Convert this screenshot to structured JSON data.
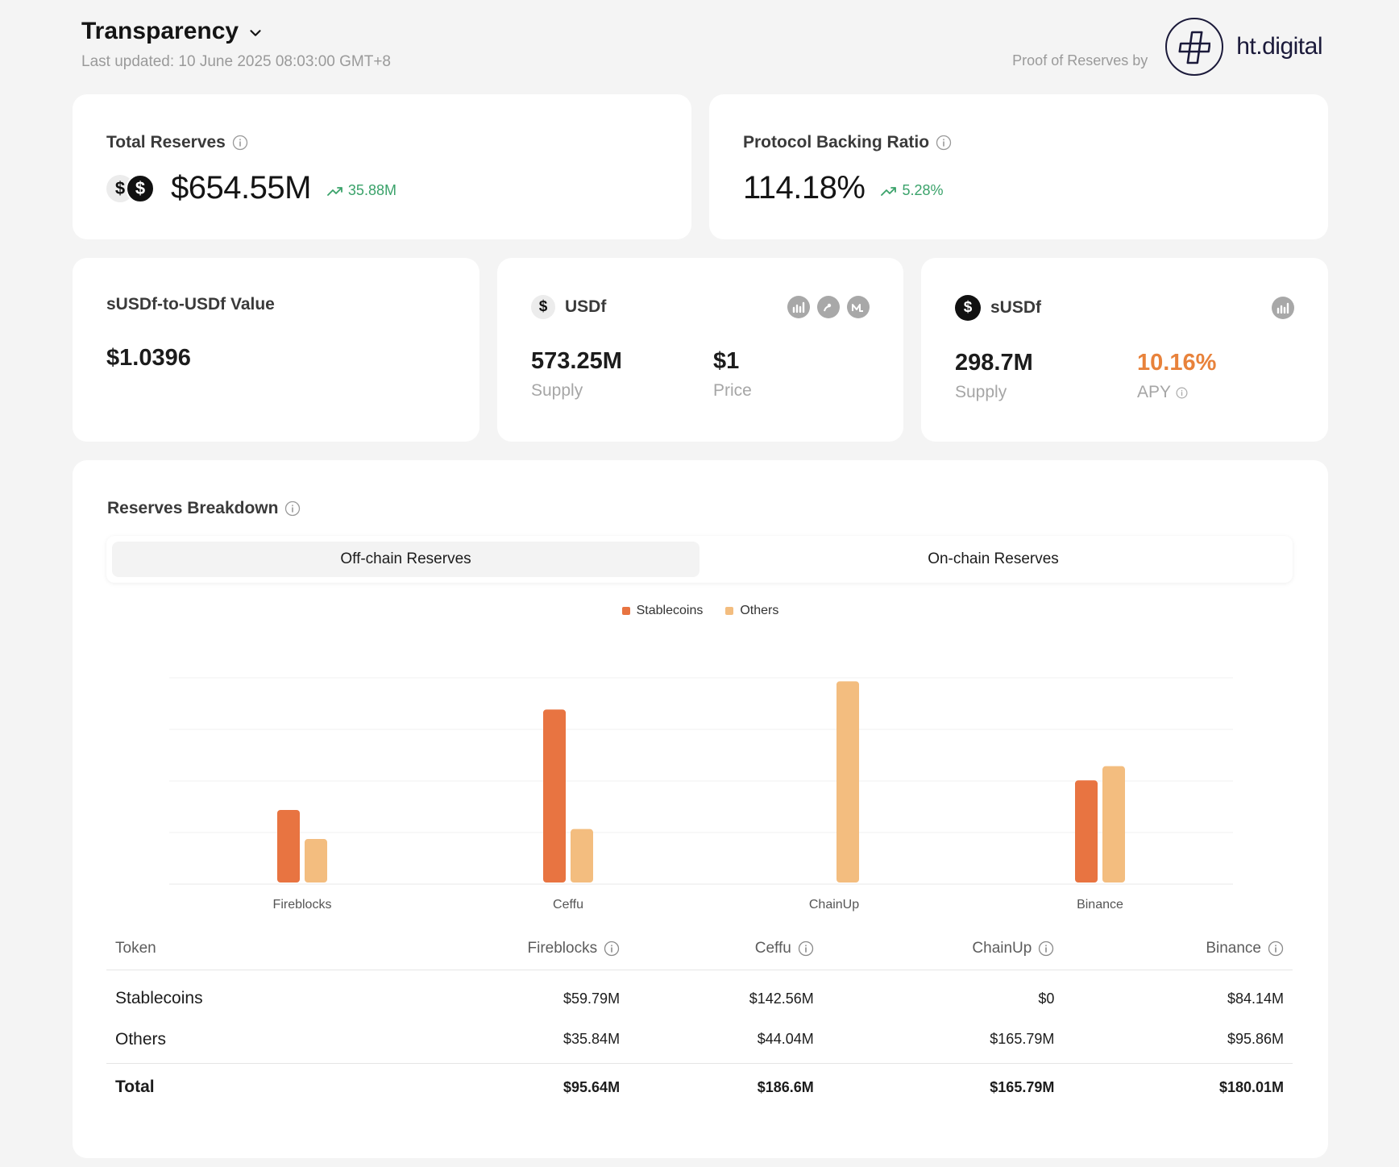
{
  "header": {
    "title": "Transparency",
    "last_updated": "Last updated: 10 June 2025 08:03:00 GMT+8",
    "proof_label": "Proof of Reserves by",
    "logo_text": "ht.digital"
  },
  "total_reserves": {
    "label": "Total Reserves",
    "value": "$654.55M",
    "change": "35.88M"
  },
  "backing_ratio": {
    "label": "Protocol Backing Ratio",
    "value": "114.18%",
    "change": "5.28%"
  },
  "susdf_value": {
    "label": "sUSDf-to-USDf Value",
    "value": "$1.0396"
  },
  "usdf": {
    "name": "USDf",
    "supply": "573.25M",
    "supply_label": "Supply",
    "price": "$1",
    "price_label": "Price"
  },
  "susdf": {
    "name": "sUSDf",
    "supply": "298.7M",
    "supply_label": "Supply",
    "apy": "10.16%",
    "apy_label": "APY"
  },
  "breakdown": {
    "label": "Reserves Breakdown",
    "tabs": [
      "Off-chain Reserves",
      "On-chain Reserves"
    ],
    "active_tab": 0
  },
  "chart_data": {
    "type": "bar",
    "categories": [
      "Fireblocks",
      "Ceffu",
      "ChainUp",
      "Binance"
    ],
    "series": [
      {
        "name": "Stablecoins",
        "color": "#e87441",
        "values": [
          59.79,
          142.56,
          0,
          84.14
        ]
      },
      {
        "name": "Others",
        "color": "#f3bd7f",
        "values": [
          35.84,
          44.04,
          165.79,
          95.86
        ]
      }
    ],
    "ylim": [
      0,
      170
    ],
    "grid": true,
    "legend": "top-center"
  },
  "table": {
    "headers": [
      "Token",
      "Fireblocks",
      "Ceffu",
      "ChainUp",
      "Binance"
    ],
    "rows": [
      [
        "Stablecoins",
        "$59.79M",
        "$142.56M",
        "$0",
        "$84.14M"
      ],
      [
        "Others",
        "$35.84M",
        "$44.04M",
        "$165.79M",
        "$95.86M"
      ]
    ],
    "total": [
      "Total",
      "$95.64M",
      "$186.6M",
      "$165.79M",
      "$180.01M"
    ]
  },
  "colors": {
    "accent_green": "#3aa26a",
    "accent_orange": "#e8823b"
  }
}
